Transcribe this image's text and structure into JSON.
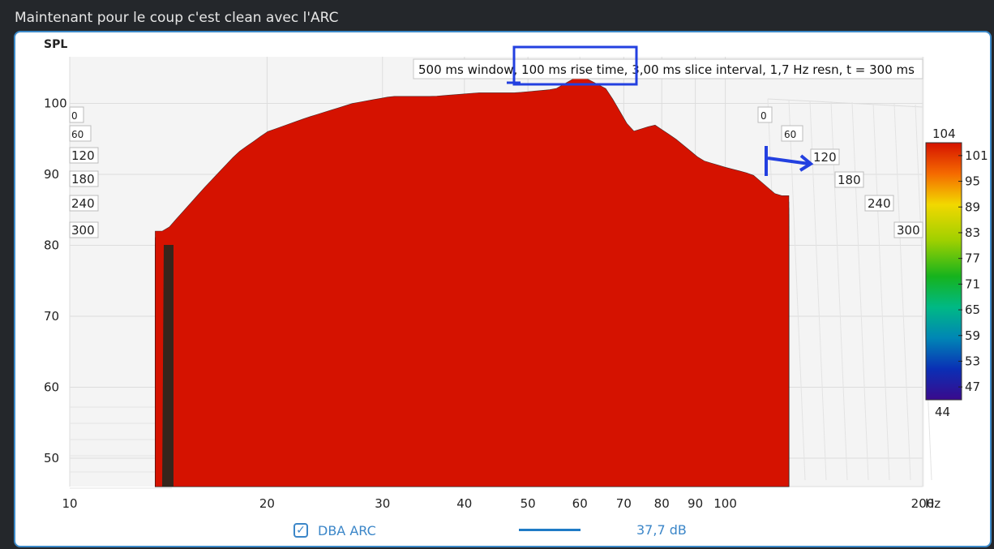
{
  "post_title": "Maintenant pour le coup c'est clean avec l'ARC",
  "chart_data": {
    "type": "waterfall",
    "info_box": "500 ms window, 100 ms rise time, 3,00 ms slice interval, 1,7 Hz resn, t = 300 ms",
    "ylabel": "SPL",
    "xunit": "Hz",
    "yticks": [
      "100",
      "90",
      "80",
      "70",
      "60",
      "50"
    ],
    "xticks": [
      "10",
      "20",
      "30",
      "40",
      "50",
      "60",
      "70",
      "80",
      "90",
      "100",
      "200"
    ],
    "xlim": [
      10,
      200
    ],
    "xscale": "log",
    "ylim": [
      46,
      106
    ],
    "time_labels_left": [
      "0",
      "60",
      "120",
      "180",
      "240",
      "300"
    ],
    "time_labels_right": [
      "0",
      "60",
      "120",
      "180",
      "240",
      "300"
    ],
    "colorbar": {
      "max": "104",
      "min": "44",
      "ticks": [
        "101",
        "95",
        "89",
        "83",
        "77",
        "71",
        "65",
        "59",
        "53",
        "47"
      ]
    },
    "slice_interval_ms": 3,
    "duration_ms": 300,
    "approx_initial_response": [
      {
        "hz": 14,
        "db": 82
      },
      {
        "hz": 16,
        "db": 88
      },
      {
        "hz": 18,
        "db": 93
      },
      {
        "hz": 20,
        "db": 96
      },
      {
        "hz": 23,
        "db": 98
      },
      {
        "hz": 27,
        "db": 100
      },
      {
        "hz": 31,
        "db": 101
      },
      {
        "hz": 36,
        "db": 101
      },
      {
        "hz": 42,
        "db": 101.5
      },
      {
        "hz": 48,
        "db": 101.5
      },
      {
        "hz": 55,
        "db": 102
      },
      {
        "hz": 60,
        "db": 104
      },
      {
        "hz": 66,
        "db": 102
      },
      {
        "hz": 72,
        "db": 96
      },
      {
        "hz": 78,
        "db": 97
      },
      {
        "hz": 84,
        "db": 95
      },
      {
        "hz": 92,
        "db": 92
      },
      {
        "hz": 100,
        "db": 91
      },
      {
        "hz": 110,
        "db": 90
      },
      {
        "hz": 120,
        "db": 87
      }
    ],
    "annotations": [
      "rectangle around '100 ms rise time'",
      "arrow pointing to 120 ms time label"
    ],
    "grid": true
  },
  "legend": {
    "checkbox_label": "DBA ARC",
    "value": "37,7 dB"
  }
}
